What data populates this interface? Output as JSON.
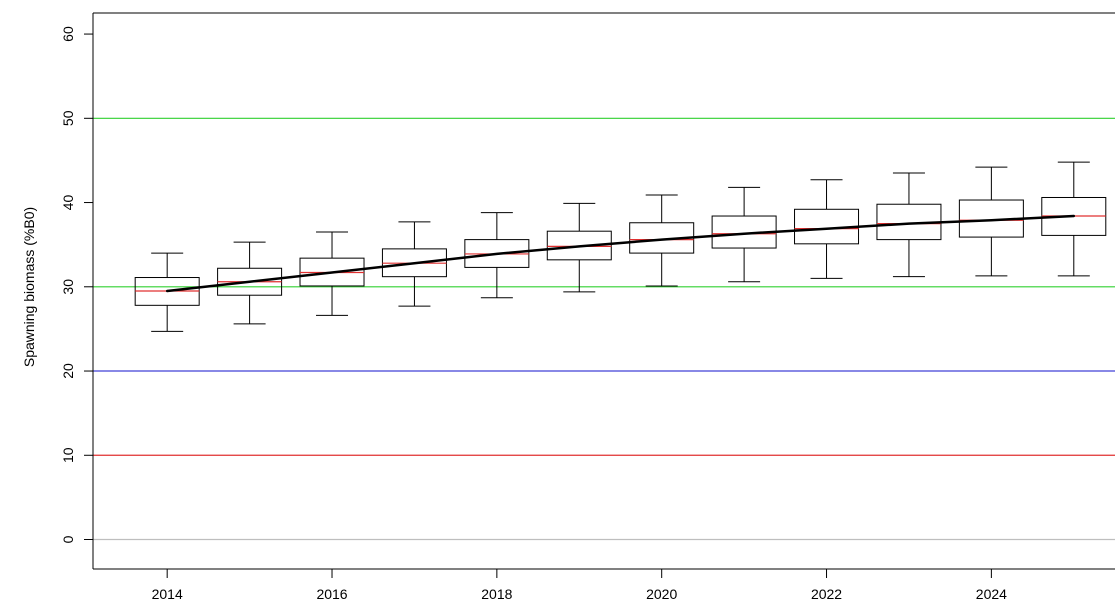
{
  "chart_data": {
    "type": "boxplot",
    "title": "",
    "xlabel": "",
    "ylabel": "Spawning biomass (%B0)",
    "xlim": [
      2013.1,
      2025.5
    ],
    "ylim": [
      -3.5,
      62.5
    ],
    "x_ticks": [
      "2014",
      "2016",
      "2018",
      "2020",
      "2022",
      "2024"
    ],
    "y_ticks": [
      "0",
      "10",
      "20",
      "30",
      "40",
      "50",
      "60"
    ],
    "grid": false,
    "colors": {
      "axis": "#000000",
      "box": "#000000",
      "median": "#e03030",
      "trend": "#000000",
      "ref_grey": "#bebebe",
      "ref_red": "#e03030",
      "ref_blue": "#4040d8",
      "ref_green": "#30d030"
    },
    "reference_lines": [
      {
        "y": 0,
        "color": "#bebebe"
      },
      {
        "y": 10,
        "color": "#e03030"
      },
      {
        "y": 20,
        "color": "#4040d8"
      },
      {
        "y": 30,
        "color": "#30d030"
      },
      {
        "y": 50,
        "color": "#30d030"
      }
    ],
    "boxes": [
      {
        "x": 2014,
        "whisker_low": 24.7,
        "q1": 27.8,
        "median": 29.5,
        "q3": 31.1,
        "whisker_high": 34.0
      },
      {
        "x": 2015,
        "whisker_low": 25.6,
        "q1": 29.0,
        "median": 30.6,
        "q3": 32.2,
        "whisker_high": 35.3
      },
      {
        "x": 2016,
        "whisker_low": 26.6,
        "q1": 30.1,
        "median": 31.7,
        "q3": 33.4,
        "whisker_high": 36.5
      },
      {
        "x": 2017,
        "whisker_low": 27.7,
        "q1": 31.2,
        "median": 32.8,
        "q3": 34.5,
        "whisker_high": 37.7
      },
      {
        "x": 2018,
        "whisker_low": 28.7,
        "q1": 32.3,
        "median": 33.9,
        "q3": 35.6,
        "whisker_high": 38.8
      },
      {
        "x": 2019,
        "whisker_low": 29.4,
        "q1": 33.2,
        "median": 34.8,
        "q3": 36.6,
        "whisker_high": 39.9
      },
      {
        "x": 2020,
        "whisker_low": 30.1,
        "q1": 34.0,
        "median": 35.6,
        "q3": 37.6,
        "whisker_high": 40.9
      },
      {
        "x": 2021,
        "whisker_low": 30.6,
        "q1": 34.6,
        "median": 36.3,
        "q3": 38.4,
        "whisker_high": 41.8
      },
      {
        "x": 2022,
        "whisker_low": 31.0,
        "q1": 35.1,
        "median": 36.9,
        "q3": 39.2,
        "whisker_high": 42.7
      },
      {
        "x": 2023,
        "whisker_low": 31.2,
        "q1": 35.6,
        "median": 37.5,
        "q3": 39.8,
        "whisker_high": 43.5
      },
      {
        "x": 2024,
        "whisker_low": 31.3,
        "q1": 35.9,
        "median": 37.9,
        "q3": 40.3,
        "whisker_high": 44.2
      },
      {
        "x": 2025,
        "whisker_low": 31.3,
        "q1": 36.1,
        "median": 38.4,
        "q3": 40.6,
        "whisker_high": 44.8
      }
    ],
    "trend_line": {
      "x": [
        2014,
        2015,
        2016,
        2017,
        2018,
        2019,
        2020,
        2021,
        2022,
        2023,
        2024,
        2025
      ],
      "y": [
        29.5,
        30.6,
        31.7,
        32.8,
        33.9,
        34.8,
        35.6,
        36.3,
        36.9,
        37.5,
        37.9,
        38.4
      ]
    }
  }
}
